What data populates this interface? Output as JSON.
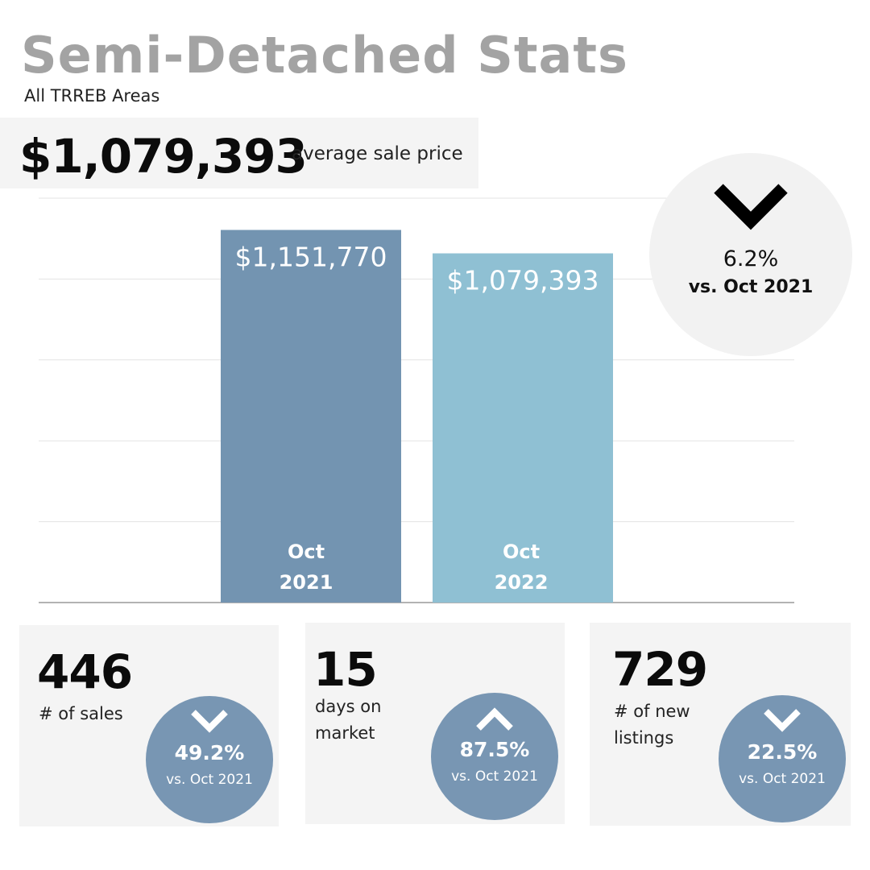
{
  "header": {
    "title": "Semi-Detached Stats",
    "subtitle": "All TRREB Areas",
    "headline_price": "$1,079,393",
    "headline_label": "average sale price"
  },
  "change": {
    "direction": "down",
    "percent": "6.2%",
    "comparison": "vs. Oct 2021"
  },
  "chart_data": {
    "type": "bar",
    "categories": [
      "Oct 2021",
      "Oct 2022"
    ],
    "category_lines": [
      [
        "Oct",
        "2021"
      ],
      [
        "Oct",
        "2022"
      ]
    ],
    "values": [
      1151770,
      1079393
    ],
    "value_labels": [
      "$1,151,770",
      "$1,079,393"
    ],
    "colors": [
      "#7394b1",
      "#8fc0d3"
    ],
    "ylim": [
      0,
      1250000
    ],
    "grid": true,
    "legend": "none"
  },
  "stats": [
    {
      "value": "446",
      "label": "# of sales",
      "direction": "down",
      "percent": "49.2%",
      "comparison": "vs. Oct 2021"
    },
    {
      "value": "15",
      "label": "days on market",
      "direction": "up",
      "percent": "87.5%",
      "comparison": "vs. Oct 2021"
    },
    {
      "value": "729",
      "label": "# of new listings",
      "direction": "down",
      "percent": "22.5%",
      "comparison": "vs. Oct 2021"
    }
  ],
  "colors": {
    "bar_2021": "#7394b1",
    "bar_2022": "#8fc0d3",
    "badge": "#7896b3",
    "title": "#a3a3a3",
    "card_bg": "#f4f4f4"
  },
  "icons": {
    "headline_change": "chevron-down-icon",
    "stat_sales": "chevron-down-icon",
    "stat_dom": "chevron-up-icon",
    "stat_listings": "chevron-down-icon"
  }
}
